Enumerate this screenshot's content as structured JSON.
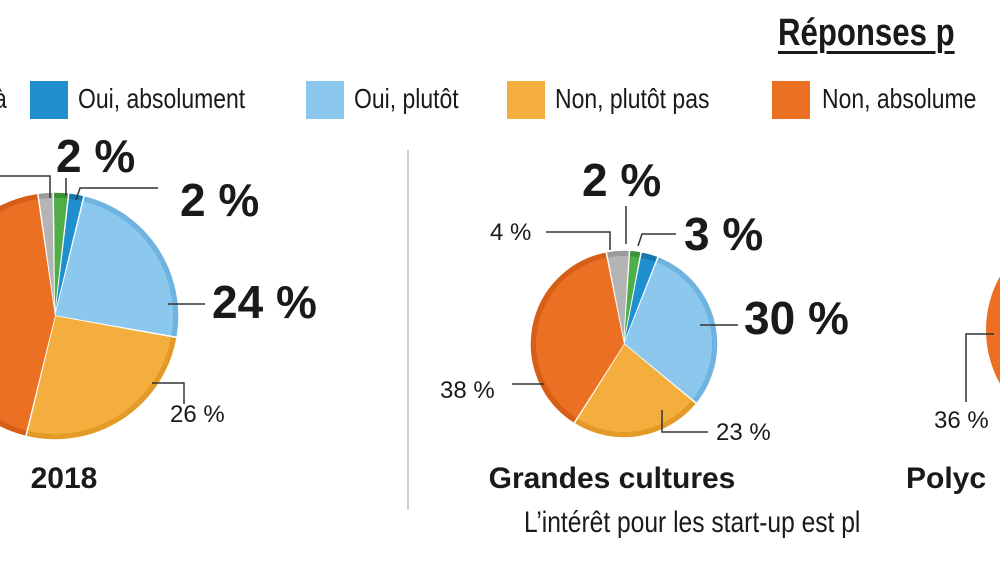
{
  "title": "Réponses p",
  "legend": [
    {
      "label": "à",
      "color": null
    },
    {
      "label": "Oui, absolument",
      "color": "#1f8fd0"
    },
    {
      "label": "Oui, plutôt",
      "color": "#8cc8ee"
    },
    {
      "label": "Non, plutôt pas",
      "color": "#f3ae3e"
    },
    {
      "label": "Non, absolume",
      "color": "#ec7024"
    }
  ],
  "colors": {
    "deja": "#4fae47",
    "oui_absolument": "#1f8fd0",
    "oui_plutot": "#8cc8ee",
    "non_plutot_pas": "#f3ae3e",
    "non_absolument": "#ec7024",
    "sans_reponse": "#b4b4b4"
  },
  "chart_data": [
    {
      "type": "pie",
      "caption": "2018",
      "labels": [
        "",
        "2 %",
        "2 %",
        "24 %",
        "26 %",
        ""
      ]
    },
    {
      "type": "pie",
      "caption": "Grandes cultures",
      "labels": [
        "4 %",
        "2 %",
        "3 %",
        "30 %",
        "23 %",
        "38 %"
      ]
    },
    {
      "type": "pie",
      "caption": "Polyc",
      "labels": [
        "36 %"
      ]
    }
  ],
  "footer": "L’intérêt pour les start-up est pl"
}
